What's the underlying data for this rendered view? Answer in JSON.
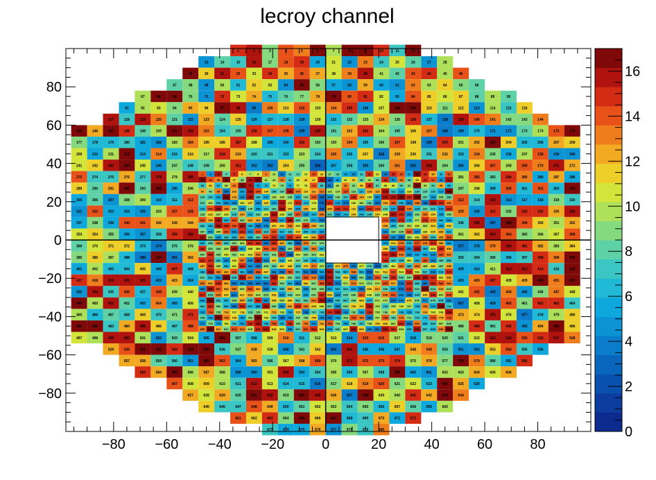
{
  "chart_data": {
    "type": "heatmap",
    "title": "lecroy channel",
    "xlabel": "",
    "ylabel": "",
    "xlim": [
      -98,
      100
    ],
    "ylim": [
      -100,
      100
    ],
    "x_ticks": [
      -80,
      -60,
      -40,
      -20,
      0,
      20,
      40,
      60,
      80
    ],
    "y_ticks": [
      -80,
      -60,
      -40,
      -20,
      0,
      20,
      40,
      60,
      80
    ],
    "x_tick_labels": [
      "−80",
      "−60",
      "−40",
      "−20",
      "0",
      "20",
      "40",
      "60",
      "80"
    ],
    "y_tick_labels": [
      "−80",
      "−60",
      "−40",
      "−20",
      "0",
      "20",
      "40",
      "60",
      "80"
    ],
    "colorbar": {
      "min": 0,
      "max": 17,
      "ticks": [
        0,
        2,
        4,
        6,
        8,
        10,
        12,
        14,
        16
      ],
      "tick_labels": [
        "0",
        "2",
        "4",
        "6",
        "8",
        "10",
        "12",
        "14",
        "16"
      ]
    },
    "grid": false,
    "outer_cell_size": 6,
    "inner_cell_size": 3,
    "inner_region": {
      "x": [
        -48,
        48
      ],
      "y": [
        -48,
        36
      ]
    },
    "hole": {
      "x": [
        0,
        20
      ],
      "y": [
        -12,
        12
      ]
    },
    "rows": [
      {
        "y": -99,
        "half_width": 24
      },
      {
        "y": -93,
        "half_width": 36
      },
      {
        "y": -87,
        "half_width": 48
      },
      {
        "y": -81,
        "half_width": 54
      },
      {
        "y": -75,
        "half_width": 60
      },
      {
        "y": -69,
        "half_width": 72
      },
      {
        "y": -63,
        "half_width": 78
      },
      {
        "y": -57,
        "half_width": 84
      },
      {
        "y": -51,
        "half_width": 96
      },
      {
        "y": -45,
        "half_width": 96
      },
      {
        "y": -39,
        "half_width": 96
      },
      {
        "y": -33,
        "half_width": 96
      },
      {
        "y": -27,
        "half_width": 96
      },
      {
        "y": -21,
        "half_width": 96
      },
      {
        "y": -15,
        "half_width": 96
      },
      {
        "y": -9,
        "half_width": 96
      },
      {
        "y": -3,
        "half_width": 96
      },
      {
        "y": 3,
        "half_width": 96
      },
      {
        "y": 9,
        "half_width": 96
      },
      {
        "y": 15,
        "half_width": 96
      },
      {
        "y": 21,
        "half_width": 96
      },
      {
        "y": 27,
        "half_width": 96
      },
      {
        "y": 33,
        "half_width": 96
      },
      {
        "y": 39,
        "half_width": 96
      },
      {
        "y": 45,
        "half_width": 96
      },
      {
        "y": 51,
        "half_width": 96
      },
      {
        "y": 57,
        "half_width": 96
      },
      {
        "y": 63,
        "half_width": 84
      },
      {
        "y": 69,
        "half_width": 78
      },
      {
        "y": 75,
        "half_width": 72
      },
      {
        "y": 81,
        "half_width": 60
      },
      {
        "y": 87,
        "half_width": 54
      },
      {
        "y": 93,
        "half_width": 48
      },
      {
        "y": 99,
        "half_width": 36
      }
    ]
  }
}
